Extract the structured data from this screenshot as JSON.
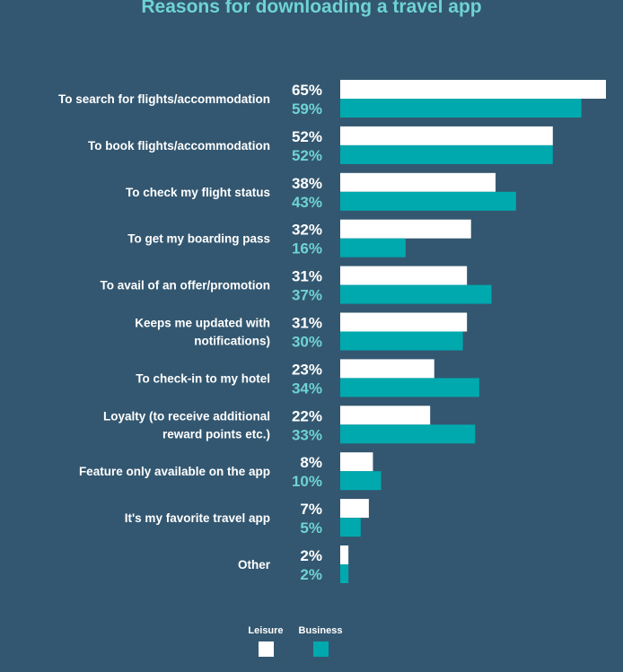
{
  "chart_data": {
    "type": "bar",
    "orientation": "horizontal",
    "title": "Reasons for downloading a travel app",
    "categories": [
      [
        "To search for flights/accommodation"
      ],
      [
        "To book flights/accommodation"
      ],
      [
        "To check my flight status"
      ],
      [
        "To get my boarding pass"
      ],
      [
        "To avail of an offer/promotion"
      ],
      [
        "Keeps me updated with",
        "notifications)"
      ],
      [
        "To check-in to my hotel"
      ],
      [
        "Loyalty (to receive additional",
        "reward points etc.)"
      ],
      [
        "Feature only available on the app"
      ],
      [
        "It's my favorite travel app"
      ],
      [
        "Other"
      ]
    ],
    "series": [
      {
        "name": "Leisure",
        "color": "#ffffff",
        "values": [
          65,
          52,
          38,
          32,
          31,
          31,
          23,
          22,
          8,
          7,
          2
        ]
      },
      {
        "name": "Business",
        "color": "#00a9ae",
        "values": [
          59,
          52,
          43,
          16,
          37,
          30,
          34,
          33,
          10,
          5,
          2
        ]
      }
    ],
    "value_suffix": "%",
    "data_label_colors": {
      "Leisure": "#ffffff",
      "Business": "#6fd3d3"
    },
    "legend_placement": "bottom-center",
    "grid": false
  }
}
